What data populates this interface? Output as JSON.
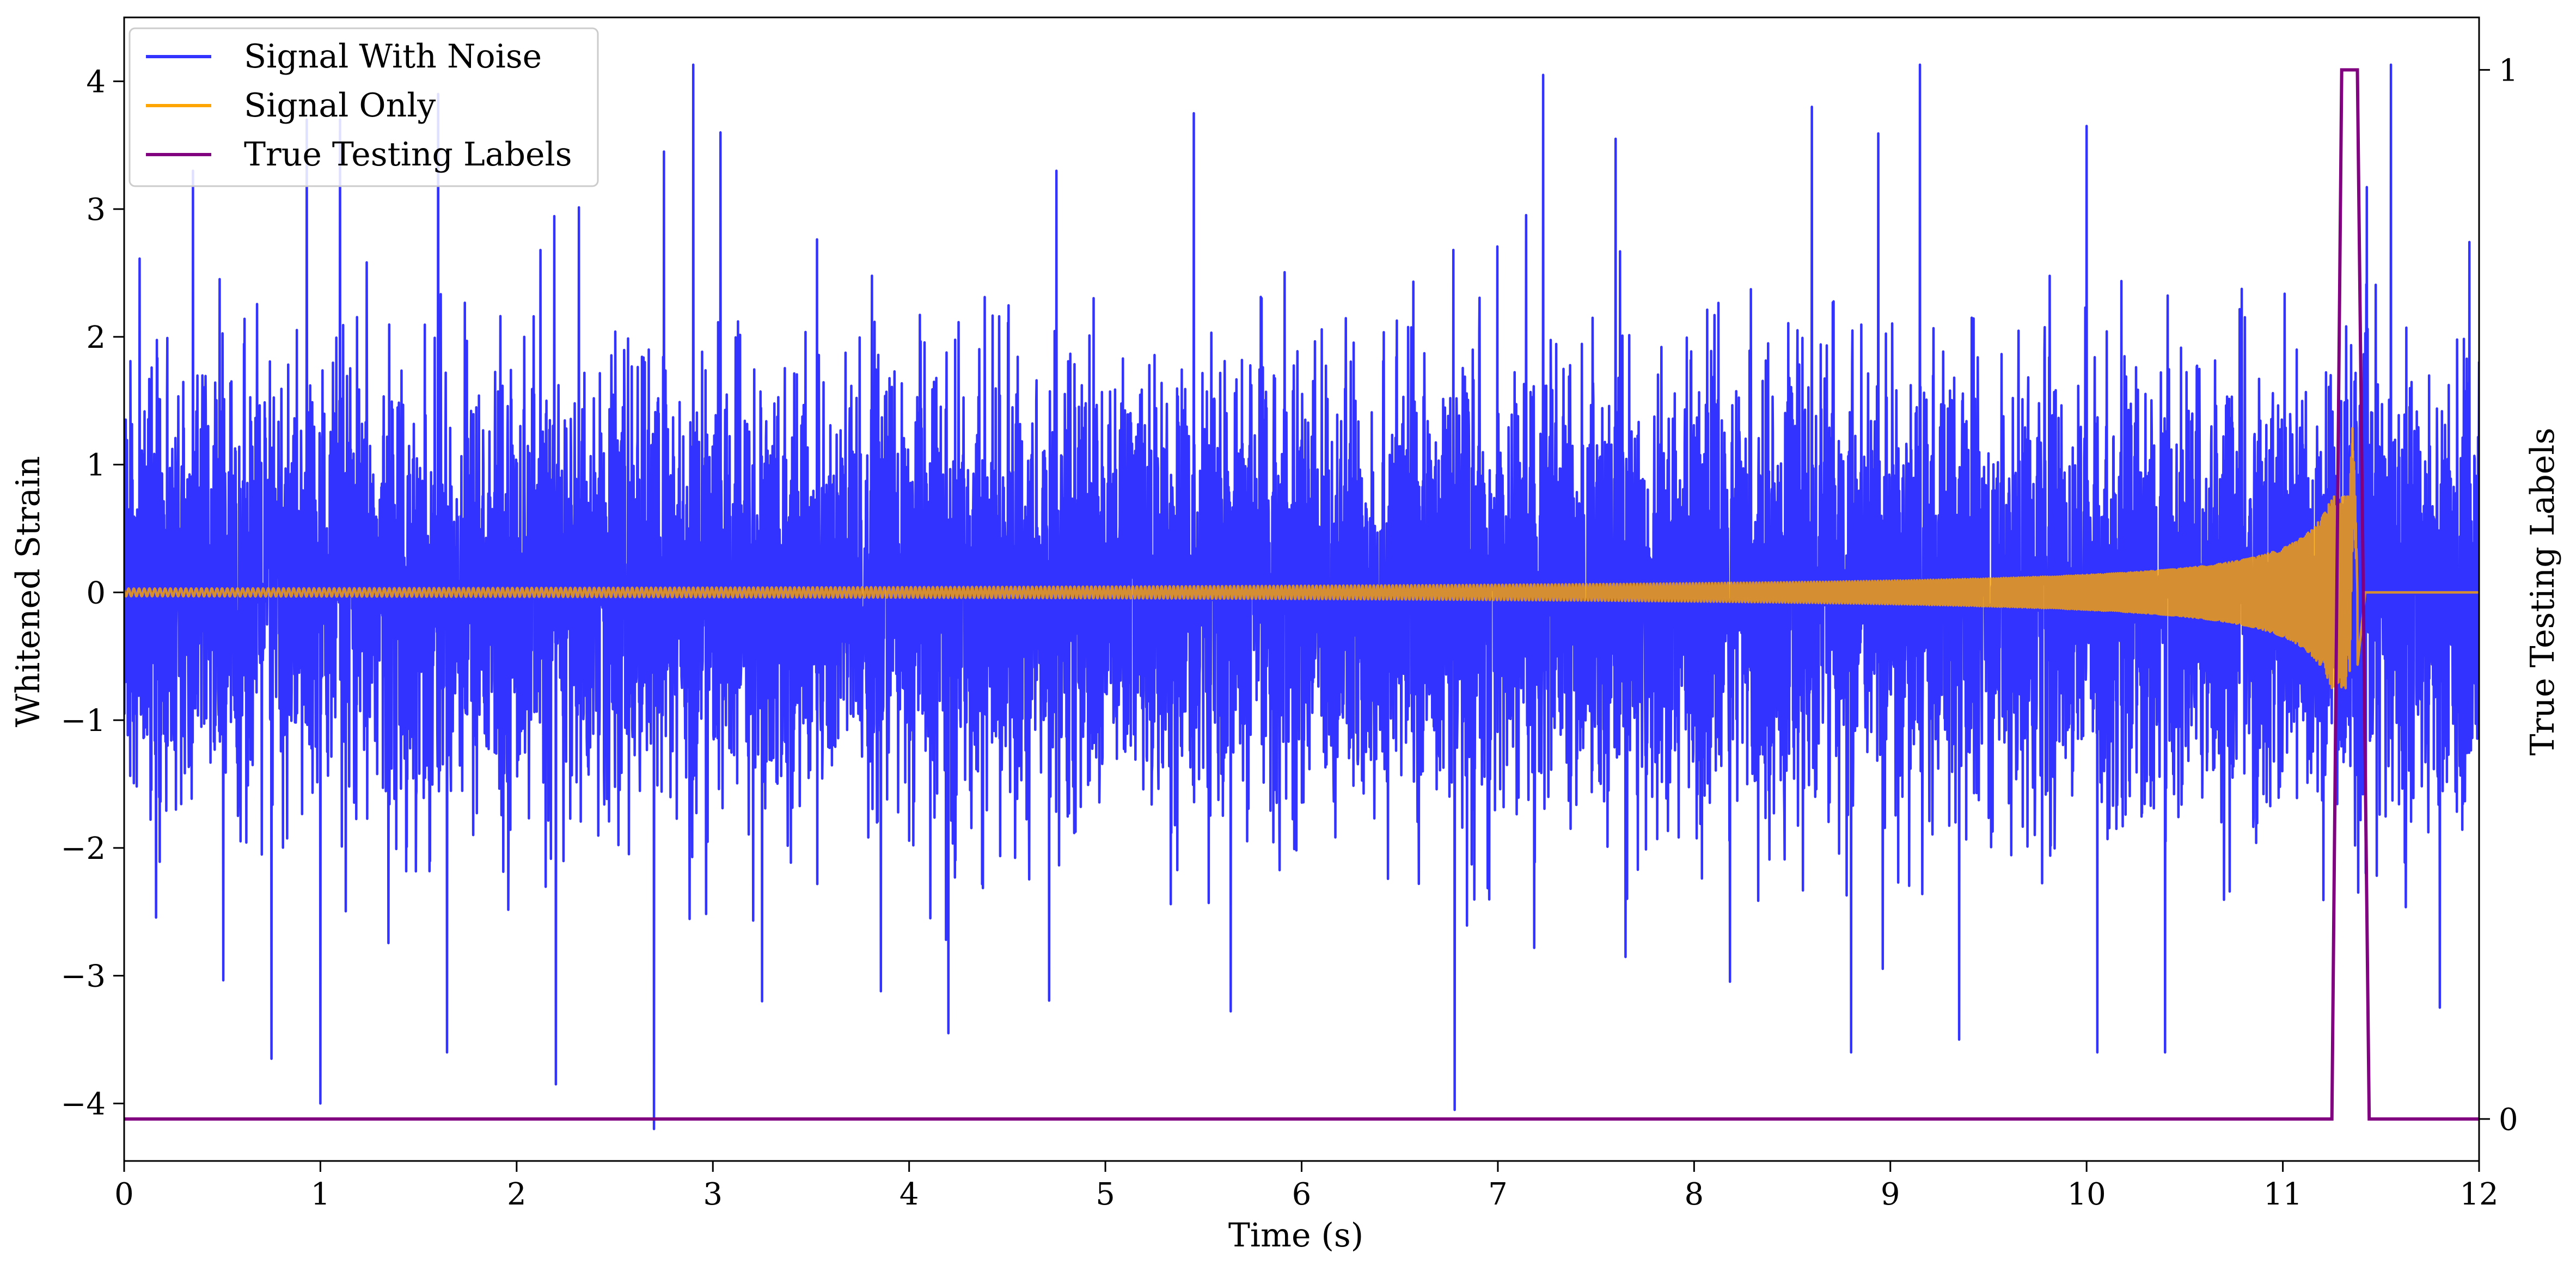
{
  "chart_data": {
    "type": "line",
    "title": "",
    "xlabel": "Time (s)",
    "ylabel": "Whitened Strain",
    "y2label": "True Testing Labels",
    "xlim": [
      0,
      12
    ],
    "ylim": [
      -4.45,
      4.5
    ],
    "y2lim": [
      -0.04,
      1.05
    ],
    "x_ticks": [
      0,
      1,
      2,
      3,
      4,
      5,
      6,
      7,
      8,
      9,
      10,
      11,
      12
    ],
    "x_tick_labels": [
      "0",
      "1",
      "2",
      "3",
      "4",
      "5",
      "6",
      "7",
      "8",
      "9",
      "10",
      "11",
      "12"
    ],
    "y_ticks": [
      -4,
      -3,
      -2,
      -1,
      0,
      1,
      2,
      3,
      4
    ],
    "y_tick_labels": [
      "−4",
      "−3",
      "−2",
      "−1",
      "0",
      "1",
      "2",
      "3",
      "4"
    ],
    "y2_ticks": [
      0,
      1
    ],
    "y2_tick_labels": [
      "0",
      "1"
    ],
    "grid": false,
    "legend": {
      "placement": "top-left",
      "entries": [
        "Signal With Noise",
        "Signal Only",
        "True Testing Labels"
      ]
    },
    "series": [
      {
        "name": "Signal With Noise",
        "axis": "left",
        "color": "#3333ff",
        "description_values": {
          "x_range": [
            0,
            12
          ],
          "typical_band": [
            -1.7,
            1.7
          ],
          "max_peak": 4.13,
          "min_peak": -4.2
        },
        "peaks": [
          {
            "x": 0.35,
            "y": 3.3
          },
          {
            "x": 0.75,
            "y": -3.65
          },
          {
            "x": 0.93,
            "y": 3.7
          },
          {
            "x": 1.0,
            "y": -4.0
          },
          {
            "x": 1.1,
            "y": 3.7
          },
          {
            "x": 1.6,
            "y": 3.9
          },
          {
            "x": 2.2,
            "y": -3.85
          },
          {
            "x": 2.7,
            "y": -4.2
          },
          {
            "x": 2.75,
            "y": 3.45
          },
          {
            "x": 2.9,
            "y": 4.13
          },
          {
            "x": 3.25,
            "y": -3.2
          },
          {
            "x": 4.2,
            "y": -3.45
          },
          {
            "x": 4.75,
            "y": 3.3
          },
          {
            "x": 5.45,
            "y": 3.75
          },
          {
            "x": 6.78,
            "y": -4.05
          },
          {
            "x": 7.23,
            "y": 4.05
          },
          {
            "x": 7.6,
            "y": 3.55
          },
          {
            "x": 8.6,
            "y": 3.8
          },
          {
            "x": 8.8,
            "y": -3.6
          },
          {
            "x": 9.15,
            "y": 4.13
          },
          {
            "x": 9.35,
            "y": -3.5
          },
          {
            "x": 10.0,
            "y": 3.65
          },
          {
            "x": 10.4,
            "y": -3.6
          },
          {
            "x": 11.55,
            "y": 4.13
          },
          {
            "x": 11.8,
            "y": -3.25
          }
        ]
      },
      {
        "name": "Signal Only",
        "axis": "left",
        "color": "#ffa500",
        "description_values": {
          "start_amplitude": 0.03,
          "merger_time": 11.38,
          "merger_amplitude_max": 0.9,
          "merger_amplitude_min": -0.58,
          "after_merger": 0
        }
      },
      {
        "name": "True Testing Labels",
        "axis": "right",
        "color": "#800080",
        "x": [
          0,
          11.25,
          11.3,
          11.38,
          11.44,
          12
        ],
        "y": [
          0,
          0,
          1,
          1,
          0,
          0
        ]
      }
    ]
  }
}
